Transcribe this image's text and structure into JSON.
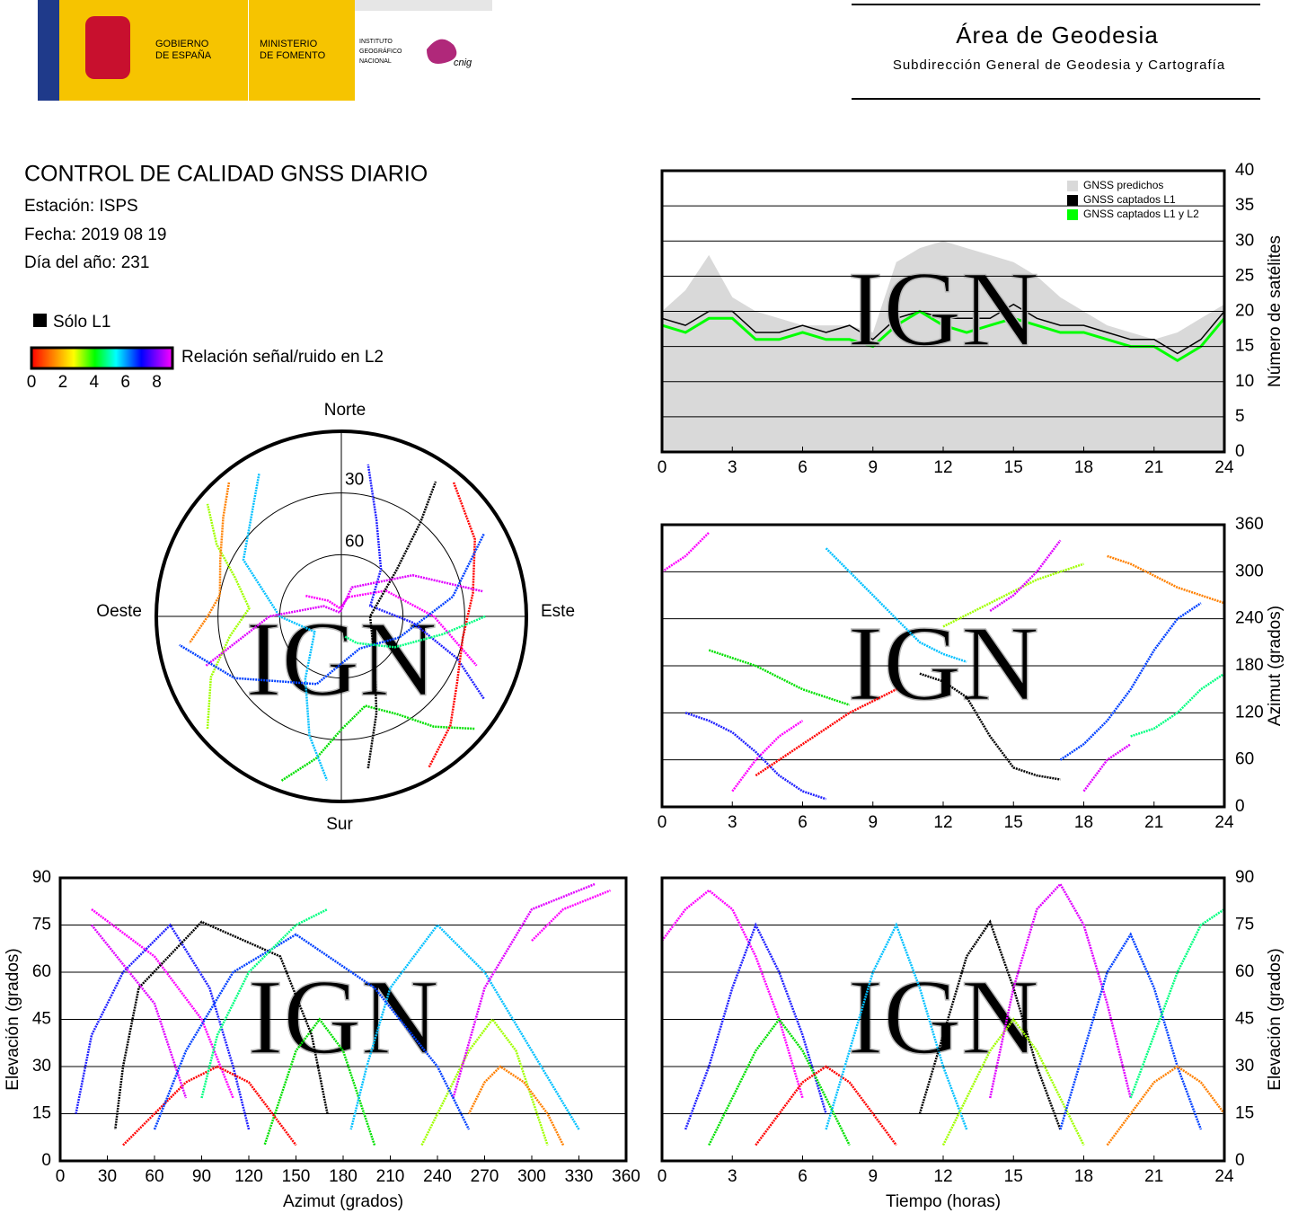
{
  "header": {
    "government": [
      "GOBIERNO",
      "DE ESPAÑA"
    ],
    "ministry": [
      "MINISTERIO",
      "DE FOMENTO"
    ],
    "institute": [
      "INSTITUTO",
      "GEOGRÁFICO",
      "NACIONAL"
    ],
    "cnig": "cnig",
    "area": "Área de Geodesia",
    "subdirection": "Subdirección General de Geodesia y Cartografía"
  },
  "report": {
    "title": "CONTROL DE CALIDAD GNSS DIARIO",
    "station": "Estación: ISPS",
    "date": "Fecha: 2019 08 19",
    "day_of_year": "Día del año: 231"
  },
  "legend": {
    "l1_only": "Sólo L1",
    "snr_label": "Relación señal/ruido en L2",
    "snr_lim": [
      0,
      9
    ],
    "snr_ticks": [
      0,
      2,
      4,
      6,
      8
    ]
  },
  "watermark": "IGN",
  "satellite_tracks": [
    {
      "color": "#ff00ff",
      "time": [
        0,
        1,
        2,
        3,
        4,
        5,
        6
      ],
      "azimuth": [
        300,
        320,
        350,
        20,
        60,
        90,
        110
      ],
      "elevation": [
        70,
        80,
        86,
        80,
        65,
        45,
        20
      ]
    },
    {
      "color": "#2020ff",
      "time": [
        1,
        2,
        3,
        4,
        5,
        6,
        7
      ],
      "azimuth": [
        120,
        110,
        95,
        70,
        40,
        20,
        10
      ],
      "elevation": [
        10,
        30,
        55,
        75,
        60,
        40,
        15
      ]
    },
    {
      "color": "#00e000",
      "time": [
        2,
        3,
        4,
        5,
        6,
        7,
        8
      ],
      "azimuth": [
        200,
        190,
        180,
        165,
        150,
        140,
        130
      ],
      "elevation": [
        5,
        20,
        35,
        45,
        35,
        20,
        5
      ]
    },
    {
      "color": "#ff0000",
      "time": [
        4,
        5,
        6,
        7,
        8,
        9,
        10
      ],
      "azimuth": [
        40,
        60,
        80,
        100,
        120,
        135,
        150
      ],
      "elevation": [
        5,
        15,
        25,
        30,
        25,
        15,
        5
      ]
    },
    {
      "color": "#00c0ff",
      "time": [
        7,
        8,
        9,
        10,
        11,
        12,
        13
      ],
      "azimuth": [
        330,
        300,
        270,
        240,
        210,
        195,
        185
      ],
      "elevation": [
        10,
        35,
        60,
        75,
        55,
        30,
        10
      ]
    },
    {
      "color": "#000000",
      "time": [
        11,
        12,
        13,
        14,
        15,
        16,
        17
      ],
      "azimuth": [
        170,
        160,
        140,
        90,
        50,
        40,
        35
      ],
      "elevation": [
        15,
        40,
        65,
        76,
        55,
        30,
        10
      ]
    },
    {
      "color": "#a0ff00",
      "time": [
        12,
        13,
        14,
        15,
        16,
        17,
        18
      ],
      "azimuth": [
        230,
        245,
        260,
        275,
        290,
        300,
        310
      ],
      "elevation": [
        5,
        20,
        35,
        45,
        35,
        20,
        5
      ]
    },
    {
      "color": "#e000ff",
      "time": [
        14,
        15,
        16,
        17,
        18,
        19,
        20
      ],
      "azimuth": [
        250,
        270,
        300,
        340,
        20,
        60,
        80
      ],
      "elevation": [
        20,
        55,
        80,
        88,
        75,
        50,
        20
      ]
    },
    {
      "color": "#0040ff",
      "time": [
        17,
        18,
        19,
        20,
        21,
        22,
        23
      ],
      "azimuth": [
        60,
        80,
        110,
        150,
        200,
        240,
        260
      ],
      "elevation": [
        10,
        35,
        60,
        72,
        55,
        30,
        10
      ]
    },
    {
      "color": "#ff8000",
      "time": [
        19,
        20,
        21,
        22,
        23,
        24
      ],
      "azimuth": [
        320,
        310,
        295,
        280,
        270,
        260
      ],
      "elevation": [
        5,
        15,
        25,
        30,
        25,
        15
      ]
    },
    {
      "color": "#00ff80",
      "time": [
        20,
        21,
        22,
        23,
        24
      ],
      "azimuth": [
        90,
        100,
        120,
        150,
        170
      ],
      "elevation": [
        20,
        40,
        60,
        75,
        80
      ]
    }
  ],
  "chart_data": [
    {
      "type": "count",
      "ylabel": "Número de satélites",
      "x": [
        0,
        1,
        2,
        3,
        4,
        5,
        6,
        7,
        8,
        9,
        10,
        11,
        12,
        13,
        14,
        15,
        16,
        17,
        18,
        19,
        20,
        21,
        22,
        23,
        24
      ],
      "series": [
        {
          "name": "GNSS predichos",
          "color": "#d9d9d9",
          "values": [
            20,
            23,
            28,
            22,
            20,
            19,
            18,
            18,
            18,
            17,
            27,
            29,
            30,
            29,
            28,
            27,
            25,
            22,
            20,
            18,
            17,
            16,
            17,
            19,
            21
          ]
        },
        {
          "name": "GNSS captados L1",
          "color": "#000000",
          "values": [
            19,
            18,
            20,
            20,
            17,
            17,
            18,
            17,
            18,
            16,
            19,
            20,
            19,
            19,
            19,
            21,
            19,
            18,
            18,
            17,
            16,
            16,
            14,
            16,
            20
          ]
        },
        {
          "name": "GNSS captados L1 y L2",
          "color": "#00ff00",
          "values": [
            18,
            17,
            19,
            19,
            16,
            16,
            17,
            16,
            16,
            15,
            18,
            20,
            18,
            17,
            18,
            19,
            18,
            17,
            17,
            16,
            15,
            15,
            13,
            15,
            19
          ]
        }
      ],
      "xlim": [
        0,
        24
      ],
      "xticks": [
        0,
        3,
        6,
        9,
        12,
        15,
        18,
        21,
        24
      ],
      "ylim": [
        0,
        40
      ],
      "yticks": [
        0,
        5,
        10,
        15,
        20,
        25,
        30,
        35,
        40
      ],
      "grid": true
    },
    {
      "type": "sky",
      "north": "Norte",
      "south": "Sur",
      "east": "Este",
      "west": "Oeste",
      "rlim": [
        90,
        0
      ],
      "rticks": [
        30,
        60
      ]
    },
    {
      "type": "aztime",
      "ylabel": "Azimut (grados)",
      "xlim": [
        0,
        24
      ],
      "xticks": [
        0,
        3,
        6,
        9,
        12,
        15,
        18,
        21,
        24
      ],
      "ylim": [
        0,
        360
      ],
      "yticks": [
        0,
        60,
        120,
        180,
        240,
        300,
        360
      ],
      "grid": true
    },
    {
      "type": "elaz",
      "xlabel": "Azimut (grados)",
      "ylabel": "Elevación (grados)",
      "xlim": [
        0,
        360
      ],
      "xticks": [
        0,
        30,
        60,
        90,
        120,
        150,
        180,
        210,
        240,
        270,
        300,
        330,
        360
      ],
      "ylim": [
        0,
        90
      ],
      "yticks": [
        0,
        15,
        30,
        45,
        60,
        75,
        90
      ],
      "grid": true
    },
    {
      "type": "eltime",
      "xlabel": "Tiempo (horas)",
      "ylabel": "Elevación (grados)",
      "xlim": [
        0,
        24
      ],
      "xticks": [
        0,
        3,
        6,
        9,
        12,
        15,
        18,
        21,
        24
      ],
      "ylim": [
        0,
        90
      ],
      "yticks": [
        0,
        15,
        30,
        45,
        60,
        75,
        90
      ],
      "grid": true
    }
  ]
}
